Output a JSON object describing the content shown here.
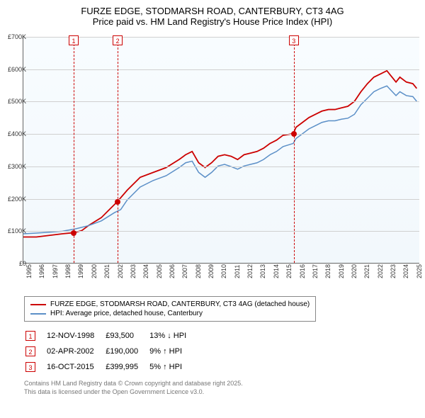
{
  "title": "FURZE EDGE, STODMARSH ROAD, CANTERBURY, CT3 4AG",
  "subtitle": "Price paid vs. HM Land Registry's House Price Index (HPI)",
  "chart": {
    "type": "line",
    "background_top": "#f8fcff",
    "background_bottom": "#f2f8fc",
    "grid_color": "#d0d0d0",
    "axis_color": "#666",
    "xlim": [
      1995,
      2025.5
    ],
    "ylim": [
      0,
      700
    ],
    "ytick_step": 100,
    "yticks": [
      "£0",
      "£100K",
      "£200K",
      "£300K",
      "£400K",
      "£500K",
      "£600K",
      "£700K"
    ],
    "xticks": [
      "1995",
      "1996",
      "1997",
      "1998",
      "1999",
      "2000",
      "2001",
      "2002",
      "2003",
      "2004",
      "2005",
      "2006",
      "2007",
      "2008",
      "2009",
      "2010",
      "2011",
      "2012",
      "2013",
      "2014",
      "2015",
      "2016",
      "2017",
      "2018",
      "2019",
      "2020",
      "2021",
      "2022",
      "2023",
      "2024",
      "2025"
    ],
    "label_fontsize": 9,
    "series": [
      {
        "name": "paid",
        "label": "FURZE EDGE, STODMARSH ROAD, CANTERBURY, CT3 4AG (detached house)",
        "color": "#cc0000",
        "line_width": 1.8,
        "data": [
          [
            1995,
            80
          ],
          [
            1996,
            80
          ],
          [
            1997,
            85
          ],
          [
            1998,
            90
          ],
          [
            1998.87,
            93.5
          ],
          [
            1999.5,
            100
          ],
          [
            2000,
            115
          ],
          [
            2001,
            140
          ],
          [
            2001.5,
            160
          ],
          [
            2002,
            180
          ],
          [
            2002.25,
            190
          ],
          [
            2003,
            225
          ],
          [
            2004,
            265
          ],
          [
            2005,
            280
          ],
          [
            2006,
            295
          ],
          [
            2007,
            320
          ],
          [
            2007.5,
            335
          ],
          [
            2008,
            345
          ],
          [
            2008.5,
            310
          ],
          [
            2009,
            295
          ],
          [
            2009.5,
            310
          ],
          [
            2010,
            330
          ],
          [
            2010.5,
            335
          ],
          [
            2011,
            330
          ],
          [
            2011.5,
            320
          ],
          [
            2012,
            335
          ],
          [
            2012.5,
            340
          ],
          [
            2013,
            345
          ],
          [
            2013.5,
            355
          ],
          [
            2014,
            370
          ],
          [
            2014.5,
            380
          ],
          [
            2015,
            395
          ],
          [
            2015.79,
            399.995
          ],
          [
            2016,
            420
          ],
          [
            2016.5,
            435
          ],
          [
            2017,
            450
          ],
          [
            2017.5,
            460
          ],
          [
            2018,
            470
          ],
          [
            2018.5,
            475
          ],
          [
            2019,
            475
          ],
          [
            2019.5,
            480
          ],
          [
            2020,
            485
          ],
          [
            2020.5,
            500
          ],
          [
            2021,
            530
          ],
          [
            2021.5,
            555
          ],
          [
            2022,
            575
          ],
          [
            2022.5,
            585
          ],
          [
            2023,
            595
          ],
          [
            2023.3,
            580
          ],
          [
            2023.7,
            560
          ],
          [
            2024,
            575
          ],
          [
            2024.5,
            560
          ],
          [
            2025,
            555
          ],
          [
            2025.3,
            540
          ]
        ]
      },
      {
        "name": "hpi",
        "label": "HPI: Average price, detached house, Canterbury",
        "color": "#5b8fc7",
        "line_width": 1.5,
        "data": [
          [
            1995,
            90
          ],
          [
            1996,
            92
          ],
          [
            1997,
            95
          ],
          [
            1998,
            98
          ],
          [
            1999,
            105
          ],
          [
            2000,
            115
          ],
          [
            2001,
            130
          ],
          [
            2002,
            155
          ],
          [
            2002.5,
            165
          ],
          [
            2003,
            195
          ],
          [
            2004,
            235
          ],
          [
            2005,
            255
          ],
          [
            2006,
            270
          ],
          [
            2007,
            295
          ],
          [
            2007.5,
            310
          ],
          [
            2008,
            315
          ],
          [
            2008.5,
            280
          ],
          [
            2009,
            265
          ],
          [
            2009.5,
            280
          ],
          [
            2010,
            300
          ],
          [
            2010.5,
            305
          ],
          [
            2011,
            298
          ],
          [
            2011.5,
            290
          ],
          [
            2012,
            300
          ],
          [
            2012.5,
            305
          ],
          [
            2013,
            310
          ],
          [
            2013.5,
            320
          ],
          [
            2014,
            335
          ],
          [
            2014.5,
            345
          ],
          [
            2015,
            360
          ],
          [
            2015.79,
            370
          ],
          [
            2016,
            385
          ],
          [
            2016.5,
            400
          ],
          [
            2017,
            415
          ],
          [
            2017.5,
            425
          ],
          [
            2018,
            435
          ],
          [
            2018.5,
            440
          ],
          [
            2019,
            440
          ],
          [
            2019.5,
            445
          ],
          [
            2020,
            448
          ],
          [
            2020.5,
            460
          ],
          [
            2021,
            490
          ],
          [
            2021.5,
            510
          ],
          [
            2022,
            530
          ],
          [
            2022.5,
            540
          ],
          [
            2023,
            548
          ],
          [
            2023.3,
            535
          ],
          [
            2023.7,
            518
          ],
          [
            2024,
            530
          ],
          [
            2024.5,
            518
          ],
          [
            2025,
            515
          ],
          [
            2025.3,
            500
          ]
        ]
      }
    ],
    "markers": [
      {
        "id": "1",
        "x": 1998.87,
        "y": 93.5,
        "color": "#cc0000"
      },
      {
        "id": "2",
        "x": 2002.25,
        "y": 190,
        "color": "#cc0000"
      },
      {
        "id": "3",
        "x": 2015.79,
        "y": 399.995,
        "color": "#cc0000"
      }
    ]
  },
  "legend": {
    "border_color": "#888"
  },
  "table": {
    "rows": [
      {
        "id": "1",
        "date": "12-NOV-1998",
        "price": "£93,500",
        "delta": "13% ↓ HPI"
      },
      {
        "id": "2",
        "date": "02-APR-2002",
        "price": "£190,000",
        "delta": "9% ↑ HPI"
      },
      {
        "id": "3",
        "date": "16-OCT-2015",
        "price": "£399,995",
        "delta": "5% ↑ HPI"
      }
    ]
  },
  "footer_line1": "Contains HM Land Registry data © Crown copyright and database right 2025.",
  "footer_line2": "This data is licensed under the Open Government Licence v3.0."
}
